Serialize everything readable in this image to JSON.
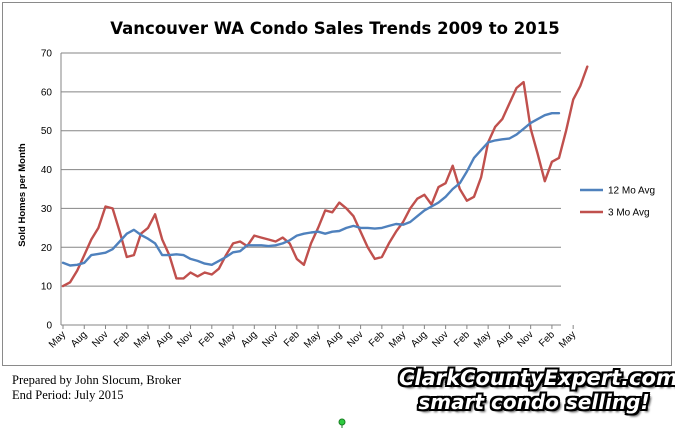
{
  "chart_data": {
    "type": "line",
    "title": "Vancouver WA Condo Sales Trends 2009 to 2015",
    "xlabel": "",
    "ylabel": "Sold Homes per Month",
    "ylim": [
      0,
      70
    ],
    "yticks": [
      0,
      10,
      20,
      30,
      40,
      50,
      60,
      70
    ],
    "grid": true,
    "legend_position": "right",
    "tick_labels": [
      "May",
      "Aug",
      "Nov",
      "Feb",
      "May",
      "Aug",
      "Nov",
      "Feb",
      "May",
      "Aug",
      "Nov",
      "Feb",
      "May",
      "Aug",
      "Nov",
      "Feb",
      "May",
      "Aug",
      "Nov",
      "Feb",
      "May",
      "Aug",
      "Nov",
      "Feb",
      "May"
    ],
    "series": [
      {
        "name": "12 Mo Avg",
        "color": "#4f81bd",
        "values": [
          16,
          15.3,
          15.5,
          16,
          18,
          18.3,
          18.6,
          19.5,
          21.5,
          23.5,
          24.5,
          23.2,
          22.2,
          21,
          18,
          18,
          18.2,
          18,
          17,
          16.5,
          15.8,
          15.5,
          16.5,
          17.5,
          18.7,
          19,
          20.5,
          20.5,
          20.5,
          20.3,
          20.5,
          21,
          21.8,
          23,
          23.5,
          23.8,
          24,
          23.5,
          24,
          24.2,
          25,
          25.5,
          25,
          25,
          24.8,
          25,
          25.5,
          26,
          25.8,
          26.5,
          28,
          29.5,
          30.5,
          31.5,
          33,
          35,
          36.5,
          39.5,
          43,
          45,
          47,
          47.5,
          47.8,
          48,
          49,
          50.5,
          52,
          53,
          54,
          54.5,
          54.5
        ]
      },
      {
        "name": "3 Mo Avg",
        "color": "#c0504d",
        "values": [
          10,
          11,
          14,
          18,
          22,
          25,
          30.5,
          30,
          24,
          17.5,
          18,
          23.5,
          25,
          28.5,
          22,
          18,
          12,
          12,
          13.5,
          12.5,
          13.5,
          13,
          14.5,
          18,
          21,
          21.5,
          20.3,
          23,
          22.5,
          22,
          21.5,
          22.5,
          21,
          17,
          15.5,
          21,
          25,
          29.5,
          29,
          31.5,
          30,
          28,
          24,
          20,
          17,
          17.5,
          21,
          24,
          26.5,
          30,
          32.5,
          33.5,
          31,
          35.5,
          36.5,
          41,
          35,
          32,
          33,
          38,
          47,
          51,
          53,
          57,
          61,
          62.5,
          50.5,
          44,
          37,
          42,
          43,
          50,
          58,
          61.5,
          66.5
        ]
      }
    ]
  },
  "caption": {
    "line1": "Prepared by John Slocum, Broker",
    "line2": "End Period: July 2015"
  },
  "brand": {
    "line1": "ClarkCountyExpert.com",
    "line2": "smart condo selling!"
  }
}
